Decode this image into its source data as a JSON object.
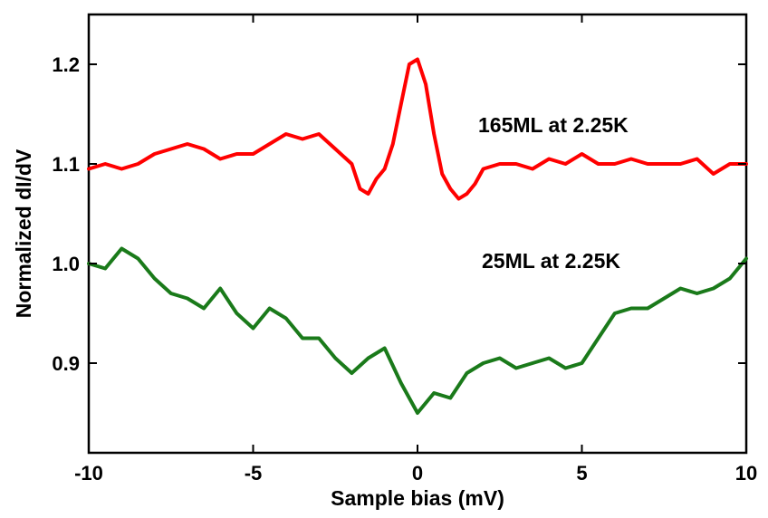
{
  "chart_data": {
    "type": "line",
    "xlabel": "Sample bias (mV)",
    "ylabel": "Normalized dI/dV",
    "xlim": [
      -10,
      10
    ],
    "ylim": [
      0.81,
      1.25
    ],
    "grid": false,
    "x_ticks": [
      -10,
      -5,
      0,
      5,
      10
    ],
    "x_tick_labels": [
      "-10",
      "-5",
      "0",
      "5",
      "10"
    ],
    "y_ticks": [
      0.9,
      1.0,
      1.1,
      1.2
    ],
    "y_tick_labels": [
      "0.9",
      "1.0",
      "1.1",
      "1.2"
    ],
    "series": [
      {
        "name": "165ML at 2.25K",
        "color": "#ff0000",
        "x": [
          -10,
          -9.5,
          -9,
          -8.5,
          -8,
          -7.5,
          -7,
          -6.5,
          -6,
          -5.5,
          -5,
          -4.5,
          -4,
          -3.5,
          -3,
          -2.5,
          -2,
          -1.75,
          -1.5,
          -1.25,
          -1,
          -0.75,
          -0.5,
          -0.25,
          0,
          0.25,
          0.5,
          0.75,
          1,
          1.25,
          1.5,
          1.75,
          2,
          2.5,
          3,
          3.5,
          4,
          4.5,
          5,
          5.5,
          6,
          6.5,
          7,
          7.5,
          8,
          8.5,
          9,
          9.5,
          10
        ],
        "y": [
          1.095,
          1.1,
          1.095,
          1.1,
          1.11,
          1.115,
          1.12,
          1.115,
          1.105,
          1.11,
          1.11,
          1.12,
          1.13,
          1.125,
          1.13,
          1.115,
          1.1,
          1.075,
          1.07,
          1.085,
          1.095,
          1.12,
          1.16,
          1.2,
          1.205,
          1.18,
          1.13,
          1.09,
          1.075,
          1.065,
          1.07,
          1.08,
          1.095,
          1.1,
          1.1,
          1.095,
          1.105,
          1.1,
          1.11,
          1.1,
          1.1,
          1.105,
          1.1,
          1.1,
          1.1,
          1.105,
          1.09,
          1.1,
          1.1
        ]
      },
      {
        "name": "25ML at 2.25K",
        "color": "#1a7a1a",
        "x": [
          -10,
          -9.5,
          -9,
          -8.5,
          -8,
          -7.5,
          -7,
          -6.5,
          -6,
          -5.5,
          -5,
          -4.5,
          -4,
          -3.5,
          -3,
          -2.5,
          -2,
          -1.5,
          -1,
          -0.5,
          0,
          0.5,
          1,
          1.5,
          2,
          2.5,
          3,
          3.5,
          4,
          4.5,
          5,
          5.5,
          6,
          6.5,
          7,
          7.5,
          8,
          8.5,
          9,
          9.5,
          10
        ],
        "y": [
          1.0,
          0.995,
          1.015,
          1.005,
          0.985,
          0.97,
          0.965,
          0.955,
          0.975,
          0.95,
          0.935,
          0.955,
          0.945,
          0.925,
          0.925,
          0.905,
          0.89,
          0.905,
          0.915,
          0.88,
          0.85,
          0.87,
          0.865,
          0.89,
          0.9,
          0.905,
          0.895,
          0.9,
          0.905,
          0.895,
          0.9,
          0.925,
          0.95,
          0.955,
          0.955,
          0.965,
          0.975,
          0.97,
          0.975,
          0.985,
          1.005
        ]
      }
    ]
  }
}
